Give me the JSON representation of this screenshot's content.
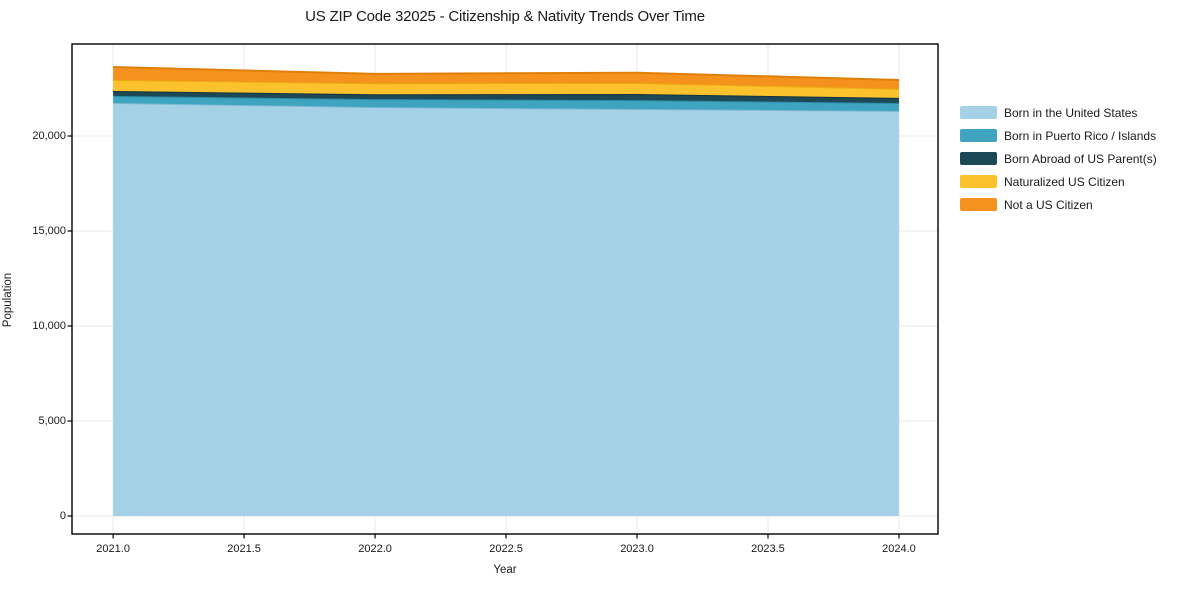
{
  "page": {
    "background": "#ffffff",
    "text_color": "#1a1a1a"
  },
  "chart_data": {
    "type": "area",
    "stacked": true,
    "title": "US ZIP Code 32025 - Citizenship & Nativity Trends Over Time",
    "xlabel": "Year",
    "ylabel": "Population",
    "x": [
      2021,
      2022,
      2023,
      2024
    ],
    "series": [
      {
        "name": "Born in the United States",
        "color": "#a5d1e6",
        "edge_color": "#7fb7d2",
        "values": [
          21740,
          21520,
          21420,
          21320
        ]
      },
      {
        "name": "Born in Puerto Rico / Islands",
        "color": "#3ea4bf",
        "edge_color": "#2d8ba6",
        "values": [
          370,
          420,
          470,
          420
        ]
      },
      {
        "name": "Born Abroad of US Parent(s)",
        "color": "#1d4956",
        "edge_color": "#14333d",
        "values": [
          260,
          260,
          320,
          265
        ]
      },
      {
        "name": "Naturalized US Citizen",
        "color": "#fcc22d",
        "edge_color": "#eaae10",
        "values": [
          580,
          570,
          580,
          475
        ]
      },
      {
        "name": "Not a US Citizen",
        "color": "#f5921e",
        "edge_color": "#e07f08",
        "values": [
          680,
          500,
          540,
          470
        ]
      }
    ],
    "stack_totals": [
      23630,
      23270,
      23330,
      22950
    ],
    "x_ticks": {
      "values": [
        2021.0,
        2021.5,
        2022.0,
        2022.5,
        2023.0,
        2023.5,
        2024.0
      ],
      "labels": [
        "2021.0",
        "2021.5",
        "2022.0",
        "2022.5",
        "2023.0",
        "2023.5",
        "2024.0"
      ]
    },
    "y_ticks": {
      "values": [
        0,
        5000,
        10000,
        15000,
        20000
      ],
      "labels": [
        "0",
        "5,000",
        "10,000",
        "15,000",
        "20,000"
      ]
    },
    "xlim": [
      2020.843,
      2024.149
    ],
    "ylim": [
      -947,
      24842
    ],
    "grid": true,
    "grid_color": "#e9e9e9",
    "frame_color": "#000000",
    "legend_position": "right"
  }
}
